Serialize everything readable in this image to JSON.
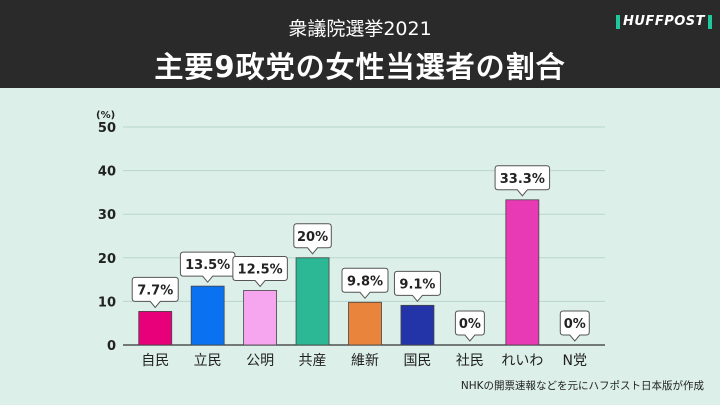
{
  "header": {
    "subtitle": "衆議院選挙2021",
    "title": "主要9政党の女性当選者の割合",
    "logo": "HUFFPOST"
  },
  "source_note": "NHKの開票速報などを元にハフポスト日本版が作成",
  "chart_data": {
    "type": "bar",
    "title": "主要9政党の女性当選者の割合",
    "ylabel": "(%)",
    "ylim": [
      0,
      50
    ],
    "yticks": [
      0,
      10,
      20,
      30,
      40,
      50
    ],
    "grid": true,
    "categories": [
      "自民",
      "立民",
      "公明",
      "共産",
      "維新",
      "国民",
      "社民",
      "れいわ",
      "N党"
    ],
    "values": [
      7.7,
      13.5,
      12.5,
      20,
      9.8,
      9.1,
      0,
      33.3,
      0
    ],
    "data_labels": [
      "7.7%",
      "13.5%",
      "12.5%",
      "20%",
      "9.8%",
      "9.1%",
      "0%",
      "33.3%",
      "0%"
    ],
    "colors": [
      "#e8007a",
      "#0a72f0",
      "#f5a6ef",
      "#2db895",
      "#e8843c",
      "#2234a8",
      "#999999",
      "#e83ab5",
      "#999999"
    ]
  }
}
